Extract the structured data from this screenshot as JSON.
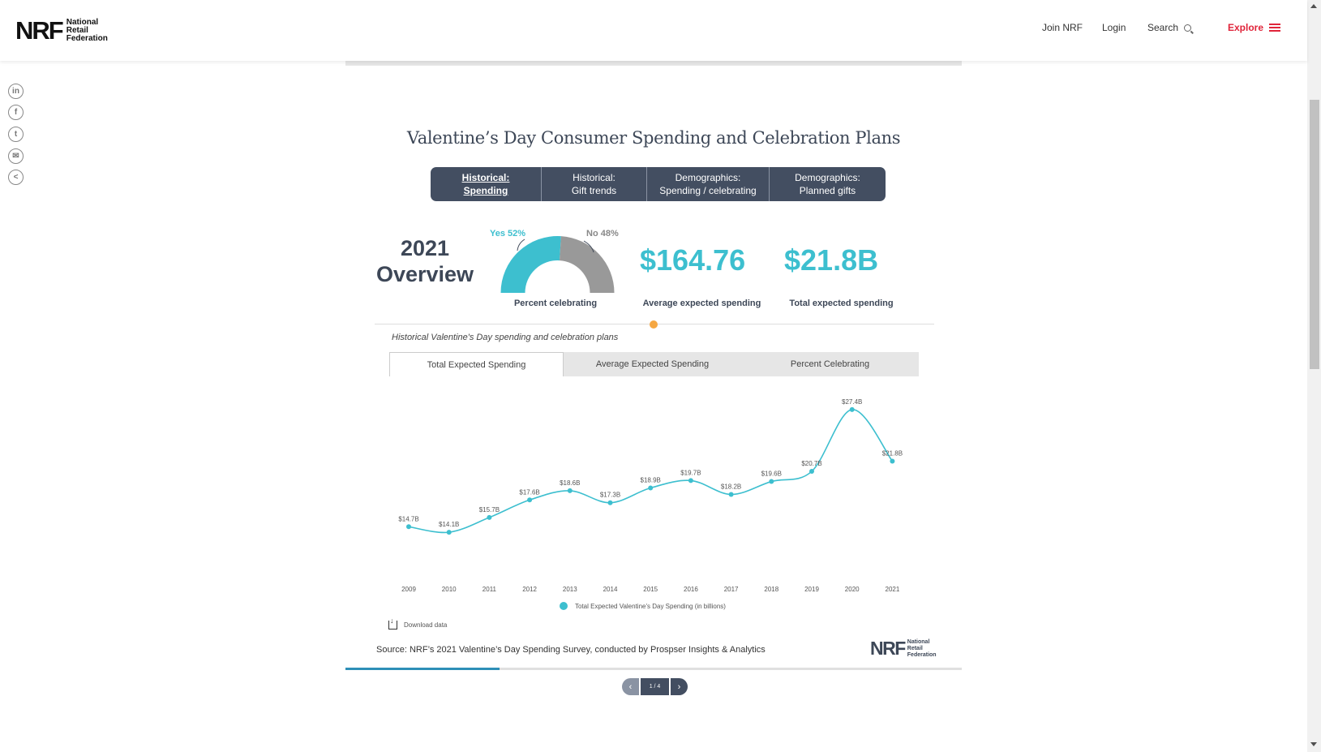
{
  "header": {
    "logo_mark": "NRF",
    "logo_text": [
      "National",
      "Retail",
      "Federation"
    ],
    "nav": {
      "join": "Join NRF",
      "login": "Login",
      "search": "Search",
      "explore": "Explore"
    }
  },
  "share": [
    "linkedin-icon",
    "facebook-icon",
    "twitter-icon",
    "email-icon",
    "share-icon"
  ],
  "title": "Valentine’s Day Consumer Spending and Celebration Plans",
  "tabs": [
    {
      "line1": "Historical:",
      "line2": "Spending",
      "active": true
    },
    {
      "line1": "Historical:",
      "line2": "Gift trends",
      "active": false
    },
    {
      "line1": "Demographics:",
      "line2": "Spending / celebrating",
      "active": false
    },
    {
      "line1": "Demographics:",
      "line2": "Planned gifts",
      "active": false
    }
  ],
  "overview": {
    "year": "2021",
    "label": "Overview",
    "donut": {
      "yes_label": "Yes 52%",
      "no_label": "No 48%",
      "yes": 52,
      "no": 48,
      "caption": "Percent celebrating",
      "yes_color": "#3dbfcf",
      "no_color": "#999999"
    },
    "avg_value": "$164.76",
    "avg_label": "Average expected spending",
    "total_value": "$21.8B",
    "total_label": "Total expected spending"
  },
  "chart_caption": "Historical Valentine's Day spending and celebration plans",
  "chart_tabs": [
    {
      "label": "Total Expected Spending",
      "active": true
    },
    {
      "label": "Average Expected Spending",
      "active": false
    },
    {
      "label": "Percent Celebrating",
      "active": false
    }
  ],
  "chart_data": {
    "type": "line",
    "x": [
      "2009",
      "2010",
      "2011",
      "2012",
      "2013",
      "2014",
      "2015",
      "2016",
      "2017",
      "2018",
      "2019",
      "2020",
      "2021"
    ],
    "series": [
      {
        "name": "Total Expected Valentine's Day Spending (in billions)",
        "values": [
          14.7,
          14.1,
          15.7,
          17.6,
          18.6,
          17.3,
          18.9,
          19.7,
          18.2,
          19.6,
          20.7,
          27.4,
          21.8
        ],
        "labels": [
          "$14.7B",
          "$14.1B",
          "$15.7B",
          "$17.6B",
          "$18.6B",
          "$17.3B",
          "$18.9B",
          "$19.7B",
          "$18.2B",
          "$19.6B",
          "$20.7B",
          "$27.4B",
          "$21.8B"
        ],
        "color": "#3dbfcf"
      }
    ],
    "ylim": [
      12,
      28
    ],
    "grid": false,
    "legend": "bottom-center"
  },
  "download_label": "Download data",
  "source": "Source: NRF’s 2021 Valentine’s Day Spending Survey, conducted by Prospser Insights & Analytics",
  "slide_progress": 0.25,
  "pager": {
    "label": "1 / 4"
  }
}
